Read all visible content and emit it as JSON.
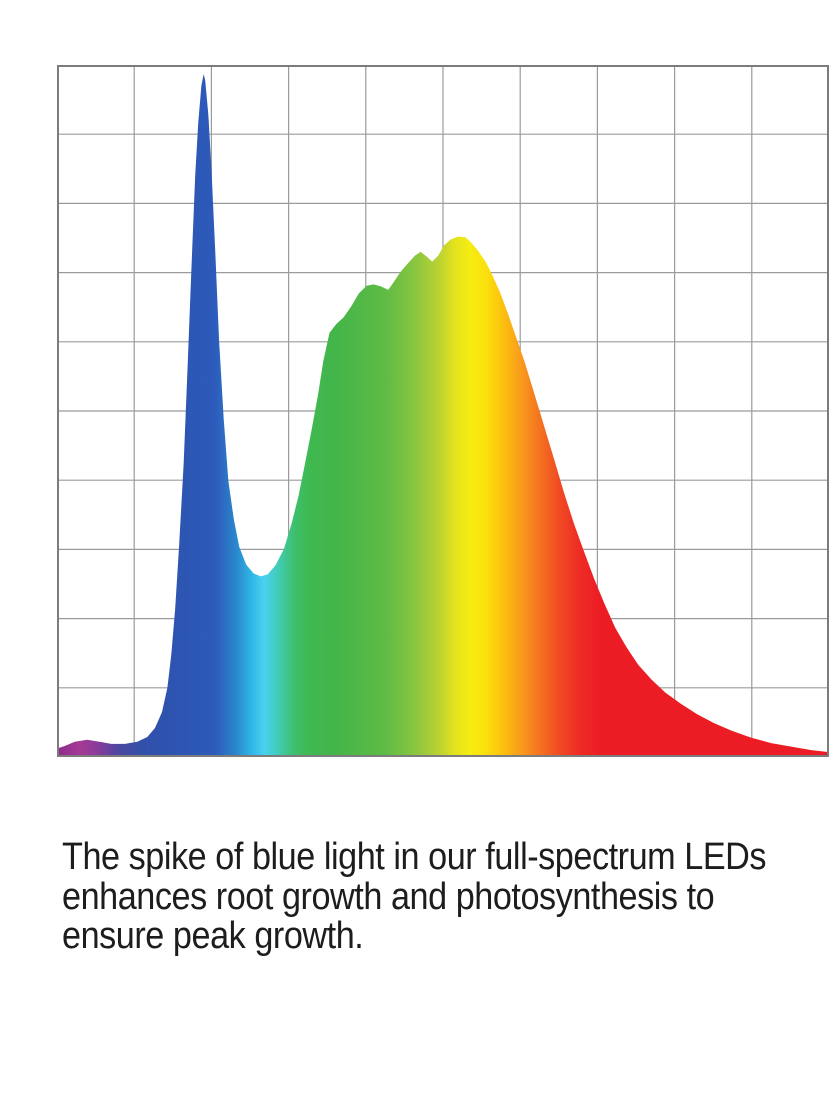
{
  "page": {
    "background": "#ffffff"
  },
  "caption": {
    "lines": [
      "The spike of blue light in our full-spectrum LEDs",
      "enhances root growth and photosynthesis to",
      "ensure peak growth."
    ],
    "text_color": "#1d1d1f"
  },
  "chart_data": {
    "type": "area",
    "title": "",
    "xlabel": "",
    "ylabel": "",
    "x_axis_tick_labels": [],
    "y_axis_tick_labels": [],
    "legend": "none",
    "description": "Spectral power distribution of a full-spectrum LED: a tall narrow blue spike near the left (reaching almost the top of the plot), a dip, then a broad green-yellow hump peaking around mid-axis, decaying through orange into a long red tail. Area is filled with a horizontal rainbow gradient (violet to red) over a square grid with no axis labels.",
    "grid": {
      "on": true,
      "cols": 10,
      "rows": 10,
      "line_color": "#9b9b9b",
      "border_color": "#7c7c7c"
    },
    "x_range_fraction": [
      0,
      1
    ],
    "y_range_fraction": [
      0,
      1
    ],
    "features": {
      "blue_spike": {
        "x": 0.19,
        "intensity": 0.99
      },
      "valley": {
        "x": 0.264,
        "intensity": 0.26
      },
      "broad_peak": {
        "x": 0.52,
        "intensity": 0.75
      },
      "red_tail_end": {
        "x": 1.0,
        "intensity": 0.01
      }
    },
    "points": [
      [
        0.0,
        0.012
      ],
      [
        0.01,
        0.016
      ],
      [
        0.023,
        0.022
      ],
      [
        0.039,
        0.025
      ],
      [
        0.055,
        0.022
      ],
      [
        0.07,
        0.019
      ],
      [
        0.088,
        0.019
      ],
      [
        0.104,
        0.022
      ],
      [
        0.117,
        0.029
      ],
      [
        0.127,
        0.042
      ],
      [
        0.136,
        0.065
      ],
      [
        0.143,
        0.1
      ],
      [
        0.148,
        0.148
      ],
      [
        0.153,
        0.213
      ],
      [
        0.158,
        0.303
      ],
      [
        0.164,
        0.423
      ],
      [
        0.169,
        0.558
      ],
      [
        0.174,
        0.703
      ],
      [
        0.179,
        0.839
      ],
      [
        0.183,
        0.917
      ],
      [
        0.187,
        0.97
      ],
      [
        0.19,
        0.987
      ],
      [
        0.192,
        0.978
      ],
      [
        0.196,
        0.929
      ],
      [
        0.2,
        0.851
      ],
      [
        0.205,
        0.732
      ],
      [
        0.21,
        0.601
      ],
      [
        0.216,
        0.488
      ],
      [
        0.222,
        0.399
      ],
      [
        0.229,
        0.344
      ],
      [
        0.236,
        0.304
      ],
      [
        0.245,
        0.278
      ],
      [
        0.255,
        0.265
      ],
      [
        0.264,
        0.261
      ],
      [
        0.273,
        0.264
      ],
      [
        0.283,
        0.277
      ],
      [
        0.294,
        0.301
      ],
      [
        0.304,
        0.338
      ],
      [
        0.313,
        0.378
      ],
      [
        0.322,
        0.428
      ],
      [
        0.33,
        0.474
      ],
      [
        0.338,
        0.523
      ],
      [
        0.345,
        0.572
      ],
      [
        0.353,
        0.613
      ],
      [
        0.362,
        0.626
      ],
      [
        0.371,
        0.635
      ],
      [
        0.381,
        0.651
      ],
      [
        0.391,
        0.67
      ],
      [
        0.401,
        0.681
      ],
      [
        0.41,
        0.683
      ],
      [
        0.42,
        0.68
      ],
      [
        0.429,
        0.675
      ],
      [
        0.436,
        0.686
      ],
      [
        0.445,
        0.701
      ],
      [
        0.455,
        0.714
      ],
      [
        0.464,
        0.725
      ],
      [
        0.471,
        0.73
      ],
      [
        0.479,
        0.723
      ],
      [
        0.486,
        0.716
      ],
      [
        0.494,
        0.725
      ],
      [
        0.501,
        0.739
      ],
      [
        0.51,
        0.748
      ],
      [
        0.52,
        0.752
      ],
      [
        0.529,
        0.751
      ],
      [
        0.536,
        0.744
      ],
      [
        0.545,
        0.732
      ],
      [
        0.555,
        0.716
      ],
      [
        0.564,
        0.696
      ],
      [
        0.574,
        0.671
      ],
      [
        0.584,
        0.641
      ],
      [
        0.595,
        0.606
      ],
      [
        0.606,
        0.57
      ],
      [
        0.618,
        0.526
      ],
      [
        0.631,
        0.478
      ],
      [
        0.644,
        0.43
      ],
      [
        0.657,
        0.381
      ],
      [
        0.67,
        0.336
      ],
      [
        0.683,
        0.296
      ],
      [
        0.696,
        0.257
      ],
      [
        0.709,
        0.222
      ],
      [
        0.723,
        0.187
      ],
      [
        0.738,
        0.158
      ],
      [
        0.753,
        0.133
      ],
      [
        0.77,
        0.112
      ],
      [
        0.788,
        0.093
      ],
      [
        0.808,
        0.077
      ],
      [
        0.829,
        0.062
      ],
      [
        0.851,
        0.049
      ],
      [
        0.874,
        0.038
      ],
      [
        0.899,
        0.028
      ],
      [
        0.925,
        0.02
      ],
      [
        0.951,
        0.015
      ],
      [
        0.977,
        0.01
      ],
      [
        1.0,
        0.007
      ]
    ],
    "gradient_stops": [
      {
        "offset": 0.0,
        "color": "#8e2b8d"
      },
      {
        "offset": 0.03,
        "color": "#a43a94"
      },
      {
        "offset": 0.055,
        "color": "#853c9b"
      },
      {
        "offset": 0.08,
        "color": "#4b47a0"
      },
      {
        "offset": 0.11,
        "color": "#3250a9"
      },
      {
        "offset": 0.15,
        "color": "#2d54b0"
      },
      {
        "offset": 0.205,
        "color": "#2d5bbb"
      },
      {
        "offset": 0.232,
        "color": "#2a87cd"
      },
      {
        "offset": 0.252,
        "color": "#2fb6e6"
      },
      {
        "offset": 0.268,
        "color": "#49d1f1"
      },
      {
        "offset": 0.286,
        "color": "#41ccb8"
      },
      {
        "offset": 0.306,
        "color": "#3dc070"
      },
      {
        "offset": 0.326,
        "color": "#3fb951"
      },
      {
        "offset": 0.36,
        "color": "#43b549"
      },
      {
        "offset": 0.425,
        "color": "#5fbb45"
      },
      {
        "offset": 0.465,
        "color": "#8bc63f"
      },
      {
        "offset": 0.495,
        "color": "#bbd232"
      },
      {
        "offset": 0.515,
        "color": "#e3e21d"
      },
      {
        "offset": 0.535,
        "color": "#f6ec12"
      },
      {
        "offset": 0.556,
        "color": "#fbe00d"
      },
      {
        "offset": 0.576,
        "color": "#fcc30e"
      },
      {
        "offset": 0.6,
        "color": "#f99d1c"
      },
      {
        "offset": 0.625,
        "color": "#f4731f"
      },
      {
        "offset": 0.65,
        "color": "#f04b24"
      },
      {
        "offset": 0.676,
        "color": "#ee2c24"
      },
      {
        "offset": 0.705,
        "color": "#ec1c24"
      },
      {
        "offset": 1.0,
        "color": "#ec1c24"
      }
    ]
  }
}
